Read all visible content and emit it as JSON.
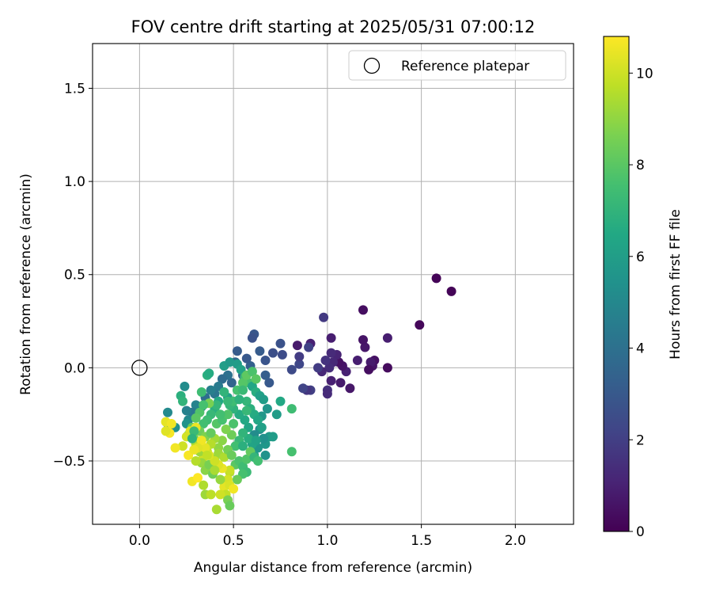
{
  "chart_data": {
    "type": "scatter",
    "title": "FOV centre drift starting at 2025/05/31 07:00:12",
    "xlabel": "Angular distance from reference (arcmin)",
    "ylabel": "Rotation from reference (arcmin)",
    "xlim": [
      -0.25,
      2.31
    ],
    "ylim": [
      -0.84,
      1.74
    ],
    "xticks": [
      0.0,
      0.5,
      1.0,
      1.5,
      2.0
    ],
    "xtick_labels": [
      "0.0",
      "0.5",
      "1.0",
      "1.5",
      "2.0"
    ],
    "yticks": [
      -0.5,
      0.0,
      0.5,
      1.0,
      1.5
    ],
    "ytick_labels": [
      "−0.5",
      "0.0",
      "0.5",
      "1.0",
      "1.5"
    ],
    "grid": true,
    "legend": {
      "placement": "top-right",
      "entries": [
        "Reference platepar"
      ]
    },
    "reference_point": {
      "x": 0.0,
      "y": 0.0,
      "marker": "open-circle"
    },
    "colorbar": {
      "label": "Hours from first FF file",
      "colormap": "viridis",
      "range": [
        0,
        10.8
      ],
      "ticks": [
        0,
        2,
        4,
        6,
        8,
        10
      ],
      "tick_labels": [
        "0",
        "2",
        "4",
        "6",
        "8",
        "10"
      ]
    },
    "series": [
      {
        "points": [
          [
            1.66,
            0.41,
            0.1
          ],
          [
            1.58,
            0.48,
            0.1
          ],
          [
            1.49,
            0.23,
            0.2
          ],
          [
            1.32,
            0.16,
            0.9
          ],
          [
            1.32,
            0.0,
            0.3
          ],
          [
            1.25,
            0.04,
            0.5
          ],
          [
            1.24,
            0.01,
            0.6
          ],
          [
            1.23,
            0.03,
            0.8
          ],
          [
            1.22,
            -0.01,
            0.4
          ],
          [
            1.2,
            0.11,
            0.7
          ],
          [
            1.19,
            0.15,
            0.6
          ],
          [
            1.19,
            0.31,
            0.4
          ],
          [
            1.16,
            0.04,
            0.9
          ],
          [
            1.12,
            -0.11,
            0.7
          ],
          [
            1.1,
            -0.02,
            1.0
          ],
          [
            1.08,
            0.01,
            0.6
          ],
          [
            1.07,
            -0.08,
            0.8
          ],
          [
            1.06,
            0.03,
            0.5
          ],
          [
            1.05,
            0.07,
            1.1
          ],
          [
            1.03,
            0.03,
            1.2
          ],
          [
            1.02,
            0.08,
            1.3
          ],
          [
            1.02,
            -0.07,
            1.0
          ],
          [
            1.01,
            -0.0,
            1.4
          ],
          [
            1.02,
            0.16,
            0.9
          ],
          [
            1.0,
            -0.12,
            1.5
          ],
          [
            1.0,
            -0.14,
            1.3
          ],
          [
            0.99,
            0.04,
            1.6
          ],
          [
            0.97,
            -0.02,
            1.2
          ],
          [
            0.98,
            0.27,
            1.8
          ],
          [
            0.95,
            0.0,
            1.9
          ],
          [
            0.91,
            -0.12,
            2.0
          ],
          [
            0.91,
            0.13,
            1.0
          ],
          [
            0.9,
            0.11,
            2.1
          ],
          [
            0.89,
            -0.12,
            1.7
          ],
          [
            0.87,
            -0.11,
            2.2
          ],
          [
            0.85,
            0.02,
            2.3
          ],
          [
            0.85,
            0.06,
            1.9
          ],
          [
            0.84,
            0.12,
            0.8
          ],
          [
            0.81,
            -0.01,
            2.4
          ],
          [
            0.76,
            0.07,
            2.5
          ],
          [
            0.75,
            0.13,
            2.7
          ],
          [
            0.71,
            0.08,
            2.6
          ],
          [
            0.69,
            -0.08,
            3.0
          ],
          [
            0.67,
            0.04,
            2.8
          ],
          [
            0.67,
            -0.04,
            3.2
          ],
          [
            0.64,
            0.09,
            3.1
          ],
          [
            0.61,
            0.18,
            2.9
          ],
          [
            0.6,
            0.16,
            2.7
          ],
          [
            0.59,
            0.01,
            3.3
          ],
          [
            0.57,
            0.05,
            3.0
          ],
          [
            0.55,
            -0.04,
            3.4
          ],
          [
            0.52,
            0.09,
            3.1
          ],
          [
            0.51,
            0.03,
            3.6
          ],
          [
            0.49,
            -0.08,
            3.5
          ],
          [
            0.47,
            -0.04,
            4.0
          ],
          [
            0.44,
            -0.06,
            3.8
          ],
          [
            0.42,
            -0.1,
            4.4
          ],
          [
            0.4,
            -0.14,
            4.2
          ],
          [
            0.38,
            -0.12,
            4.6
          ],
          [
            0.35,
            -0.16,
            3.9
          ],
          [
            0.33,
            -0.21,
            4.5
          ],
          [
            0.3,
            -0.2,
            4.8
          ],
          [
            0.28,
            -0.24,
            4.3
          ],
          [
            0.26,
            -0.28,
            5.0
          ],
          [
            0.25,
            -0.23,
            4.7
          ],
          [
            0.24,
            -0.1,
            5.2
          ],
          [
            0.22,
            -0.15,
            6.8
          ],
          [
            0.23,
            -0.18,
            7.0
          ],
          [
            0.25,
            -0.3,
            5.5
          ],
          [
            0.15,
            -0.24,
            5.1
          ],
          [
            0.15,
            -0.3,
            5.6
          ],
          [
            0.19,
            -0.32,
            5.4
          ],
          [
            0.36,
            -0.04,
            6.8
          ],
          [
            0.37,
            -0.03,
            6.6
          ],
          [
            0.45,
            0.01,
            6.0
          ],
          [
            0.48,
            0.03,
            5.8
          ],
          [
            0.52,
            0.02,
            5.9
          ],
          [
            0.54,
            -0.01,
            6.2
          ],
          [
            0.56,
            -0.05,
            7.3
          ],
          [
            0.58,
            -0.08,
            7.6
          ],
          [
            0.6,
            -0.1,
            6.4
          ],
          [
            0.62,
            -0.13,
            6.7
          ],
          [
            0.64,
            -0.15,
            6.1
          ],
          [
            0.66,
            -0.17,
            5.9
          ],
          [
            0.68,
            -0.22,
            5.6
          ],
          [
            0.65,
            -0.26,
            5.7
          ],
          [
            0.64,
            -0.33,
            5.3
          ],
          [
            0.61,
            -0.36,
            5.2
          ],
          [
            0.58,
            -0.32,
            6.3
          ],
          [
            0.56,
            -0.28,
            6.5
          ],
          [
            0.53,
            -0.25,
            6.6
          ],
          [
            0.5,
            -0.22,
            6.9
          ],
          [
            0.48,
            -0.2,
            7.1
          ],
          [
            0.47,
            -0.16,
            6.2
          ],
          [
            0.45,
            -0.13,
            7.0
          ],
          [
            0.42,
            -0.18,
            6.5
          ],
          [
            0.4,
            -0.22,
            6.8
          ],
          [
            0.38,
            -0.25,
            7.2
          ],
          [
            0.36,
            -0.28,
            7.4
          ],
          [
            0.34,
            -0.3,
            7.5
          ],
          [
            0.32,
            -0.24,
            7.8
          ],
          [
            0.3,
            -0.27,
            8.0
          ],
          [
            0.28,
            -0.32,
            8.2
          ],
          [
            0.26,
            -0.36,
            8.3
          ],
          [
            0.29,
            -0.38,
            8.6
          ],
          [
            0.32,
            -0.34,
            8.4
          ],
          [
            0.35,
            -0.37,
            8.7
          ],
          [
            0.38,
            -0.35,
            8.0
          ],
          [
            0.41,
            -0.3,
            7.9
          ],
          [
            0.44,
            -0.28,
            7.6
          ],
          [
            0.47,
            -0.25,
            7.8
          ],
          [
            0.5,
            -0.18,
            7.4
          ],
          [
            0.52,
            -0.12,
            7.6
          ],
          [
            0.55,
            -0.08,
            7.9
          ],
          [
            0.57,
            -0.04,
            8.1
          ],
          [
            0.6,
            -0.02,
            7.7
          ],
          [
            0.62,
            -0.06,
            8.0
          ],
          [
            0.55,
            -0.12,
            7.3
          ],
          [
            0.57,
            -0.18,
            7.1
          ],
          [
            0.59,
            -0.22,
            6.8
          ],
          [
            0.61,
            -0.25,
            6.6
          ],
          [
            0.63,
            -0.28,
            6.4
          ],
          [
            0.65,
            -0.32,
            6.1
          ],
          [
            0.67,
            -0.41,
            5.7
          ],
          [
            0.69,
            -0.37,
            5.8
          ],
          [
            0.67,
            -0.47,
            5.5
          ],
          [
            0.63,
            -0.43,
            5.6
          ],
          [
            0.61,
            -0.47,
            6.0
          ],
          [
            0.6,
            -0.41,
            6.3
          ],
          [
            0.58,
            -0.38,
            6.7
          ],
          [
            0.55,
            -0.35,
            7.0
          ],
          [
            0.53,
            -0.39,
            7.2
          ],
          [
            0.51,
            -0.42,
            7.5
          ],
          [
            0.49,
            -0.36,
            8.4
          ],
          [
            0.46,
            -0.33,
            8.7
          ],
          [
            0.44,
            -0.39,
            8.9
          ],
          [
            0.42,
            -0.43,
            9.0
          ],
          [
            0.4,
            -0.38,
            9.3
          ],
          [
            0.38,
            -0.41,
            9.6
          ],
          [
            0.36,
            -0.45,
            9.8
          ],
          [
            0.34,
            -0.48,
            10.0
          ],
          [
            0.32,
            -0.45,
            9.2
          ],
          [
            0.3,
            -0.41,
            9.5
          ],
          [
            0.33,
            -0.51,
            9.1
          ],
          [
            0.35,
            -0.55,
            8.9
          ],
          [
            0.37,
            -0.52,
            8.6
          ],
          [
            0.39,
            -0.57,
            8.4
          ],
          [
            0.4,
            -0.49,
            8.8
          ],
          [
            0.42,
            -0.46,
            9.2
          ],
          [
            0.45,
            -0.48,
            9.5
          ],
          [
            0.47,
            -0.44,
            8.5
          ],
          [
            0.49,
            -0.47,
            8.3
          ],
          [
            0.51,
            -0.52,
            8.0
          ],
          [
            0.53,
            -0.5,
            7.7
          ],
          [
            0.55,
            -0.53,
            7.4
          ],
          [
            0.57,
            -0.49,
            7.8
          ],
          [
            0.59,
            -0.45,
            8.2
          ],
          [
            0.61,
            -0.48,
            7.1
          ],
          [
            0.63,
            -0.5,
            7.5
          ],
          [
            0.57,
            -0.56,
            7.3
          ],
          [
            0.55,
            -0.57,
            7.6
          ],
          [
            0.52,
            -0.6,
            8.3
          ],
          [
            0.48,
            -0.56,
            9.6
          ],
          [
            0.47,
            -0.6,
            10.1
          ],
          [
            0.45,
            -0.64,
            10.4
          ],
          [
            0.48,
            -0.63,
            10.2
          ],
          [
            0.5,
            -0.65,
            10.6
          ],
          [
            0.46,
            -0.68,
            9.8
          ],
          [
            0.43,
            -0.68,
            10.0
          ],
          [
            0.41,
            -0.76,
            9.4
          ],
          [
            0.47,
            -0.71,
            8.6
          ],
          [
            0.48,
            -0.74,
            8.3
          ],
          [
            0.48,
            -0.55,
            9.9
          ],
          [
            0.44,
            -0.54,
            10.5
          ],
          [
            0.42,
            -0.52,
            10.3
          ],
          [
            0.4,
            -0.5,
            10.0
          ],
          [
            0.37,
            -0.47,
            10.2
          ],
          [
            0.35,
            -0.43,
            10.4
          ],
          [
            0.33,
            -0.39,
            10.6
          ],
          [
            0.3,
            -0.32,
            10.5
          ],
          [
            0.27,
            -0.34,
            10.3
          ],
          [
            0.25,
            -0.37,
            10.1
          ],
          [
            0.23,
            -0.42,
            10.0
          ],
          [
            0.19,
            -0.43,
            10.6
          ],
          [
            0.16,
            -0.35,
            10.7
          ],
          [
            0.14,
            -0.34,
            10.3
          ],
          [
            0.14,
            -0.29,
            10.4
          ],
          [
            0.17,
            -0.3,
            10.6
          ],
          [
            0.26,
            -0.47,
            10.7
          ],
          [
            0.28,
            -0.61,
            10.6
          ],
          [
            0.31,
            -0.59,
            10.8
          ],
          [
            0.34,
            -0.63,
            9.5
          ],
          [
            0.35,
            -0.68,
            9.2
          ],
          [
            0.38,
            -0.68,
            9.7
          ],
          [
            0.4,
            -0.55,
            9.4
          ],
          [
            0.43,
            -0.6,
            9.1
          ],
          [
            0.36,
            -0.47,
            9.8
          ],
          [
            0.3,
            -0.5,
            9.6
          ],
          [
            0.31,
            -0.43,
            10.3
          ],
          [
            0.29,
            -0.44,
            10.5
          ],
          [
            0.81,
            -0.22,
            7.4
          ],
          [
            0.75,
            -0.18,
            6.5
          ],
          [
            0.73,
            -0.25,
            5.9
          ],
          [
            0.81,
            -0.45,
            7.6
          ],
          [
            0.71,
            -0.37,
            5.9
          ],
          [
            0.66,
            -0.38,
            5.4
          ],
          [
            0.62,
            -0.39,
            6.2
          ],
          [
            0.55,
            -0.42,
            6.8
          ],
          [
            0.53,
            -0.17,
            6.9
          ],
          [
            0.57,
            -0.23,
            7.2
          ],
          [
            0.5,
            -0.3,
            7.7
          ],
          [
            0.43,
            -0.25,
            7.5
          ],
          [
            0.41,
            -0.2,
            7.1
          ],
          [
            0.37,
            -0.19,
            8.6
          ],
          [
            0.34,
            -0.2,
            7.6
          ],
          [
            0.29,
            -0.34,
            7.3
          ],
          [
            0.28,
            -0.38,
            6.9
          ],
          [
            0.33,
            -0.13,
            7.4
          ],
          [
            0.47,
            -0.18,
            7.2
          ],
          [
            0.38,
            -0.35,
            8.2
          ]
        ]
      }
    ]
  }
}
